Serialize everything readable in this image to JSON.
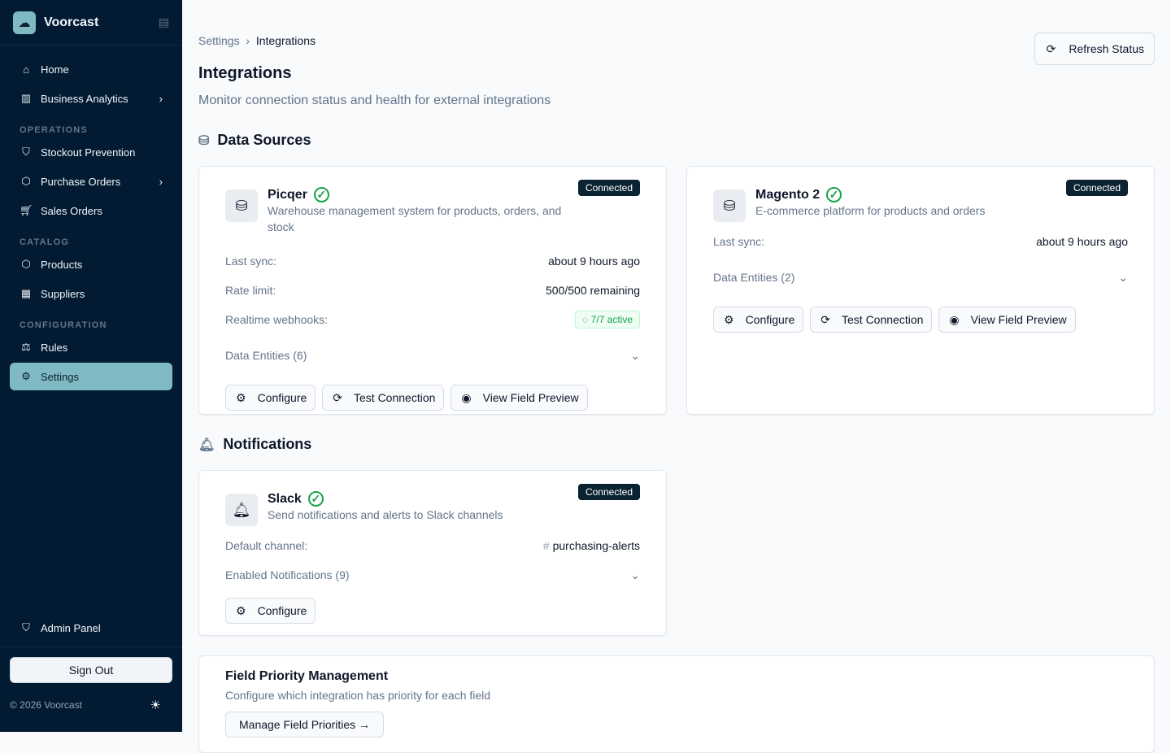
{
  "app": {
    "name": "Voorcast",
    "copyright": "© 2026 Voorcast",
    "sign_out": "Sign Out",
    "admin": "Admin Panel"
  },
  "sidebar": {
    "top": [
      {
        "label": "Home",
        "icon": "home-icon"
      },
      {
        "label": "Business Analytics",
        "icon": "bar-chart-icon",
        "chevron": true
      }
    ],
    "operations_label": "OPERATIONS",
    "operations": [
      {
        "label": "Stockout Prevention"
      },
      {
        "label": "Purchase Orders"
      },
      {
        "label": "Sales Orders"
      }
    ],
    "catalog_label": "CATALOG",
    "catalog": [
      {
        "label": "Products"
      },
      {
        "label": "Suppliers"
      }
    ],
    "configuration_label": "CONFIGURATION",
    "configuration": [
      {
        "label": "Rules"
      },
      {
        "label": "Settings",
        "active": true
      }
    ]
  },
  "header": {
    "breadcrumb": [
      "Settings",
      "Integrations"
    ],
    "title": "Integrations",
    "subtitle": "Monitor connection status and health for external integrations",
    "refresh": "Refresh Status"
  },
  "sections": {
    "data_sources": "Data Sources",
    "notifications": "Notifications"
  },
  "buttons": {
    "configure": "Configure",
    "test": "Test Connection",
    "preview": "View Field Preview"
  },
  "picqer": {
    "name": "Picqer",
    "status": "Connected",
    "desc": "Warehouse management system for products, orders, and stock",
    "last_sync_k": "Last sync:",
    "last_sync_v": "about 9 hours ago",
    "rate_k": "Rate limit:",
    "rate_v": "500/500 remaining",
    "webhooks_k": "Realtime webhooks:",
    "webhooks_v": "7/7 active",
    "entities": "Data Entities (6)"
  },
  "magento": {
    "name": "Magento 2",
    "status": "Connected",
    "desc": "E-commerce platform for products and orders",
    "last_sync_k": "Last sync:",
    "last_sync_v": "about 9 hours ago",
    "entities": "Data Entities (2)"
  },
  "slack": {
    "name": "Slack",
    "status": "Connected",
    "desc": "Send notifications and alerts to Slack channels",
    "channel_k": "Default channel:",
    "channel_v": "purchasing-alerts",
    "enabled": "Enabled Notifications (9)"
  },
  "priority": {
    "title": "Field Priority Management",
    "desc": "Configure which integration has priority for each field",
    "button": "Manage Field Priorities →"
  }
}
